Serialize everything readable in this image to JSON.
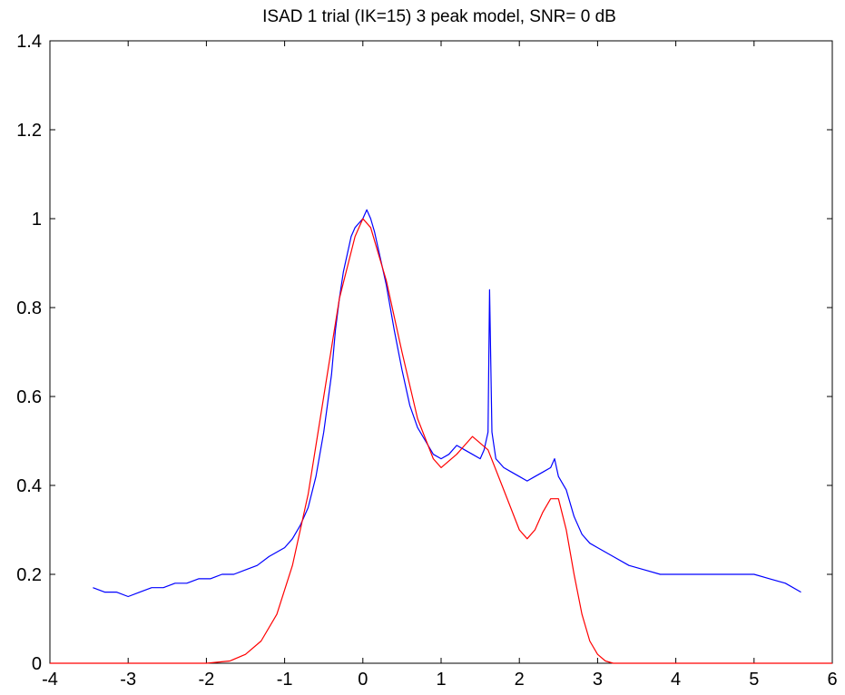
{
  "chart_data": {
    "type": "line",
    "title": "ISAD 1 trial (IK=15) 3 peak model, SNR= 0 dB",
    "xlabel": "",
    "ylabel": "",
    "xlim": [
      -4,
      6
    ],
    "ylim": [
      0,
      1.4
    ],
    "x_ticks": [
      -4,
      -3,
      -2,
      -1,
      0,
      1,
      2,
      3,
      4,
      5,
      6
    ],
    "x_tick_labels": [
      "-4",
      "-3",
      "-2",
      "-1",
      "0",
      "1",
      "2",
      "3",
      "4",
      "5",
      "6"
    ],
    "y_ticks": [
      0,
      0.2,
      0.4,
      0.6,
      0.8,
      1.0,
      1.2,
      1.4
    ],
    "y_tick_labels": [
      "0",
      "0.2",
      "0.4",
      "0.6",
      "0.8",
      "1",
      "1.2",
      "1.4"
    ],
    "grid": false,
    "legend": "none",
    "series": [
      {
        "color": "#0000ff",
        "x": [
          -3.45,
          -3.3,
          -3.15,
          -3.0,
          -2.85,
          -2.7,
          -2.55,
          -2.4,
          -2.25,
          -2.1,
          -1.95,
          -1.8,
          -1.65,
          -1.5,
          -1.35,
          -1.2,
          -1.1,
          -1.0,
          -0.9,
          -0.8,
          -0.7,
          -0.6,
          -0.5,
          -0.4,
          -0.35,
          -0.3,
          -0.25,
          -0.2,
          -0.15,
          -0.1,
          -0.05,
          0.0,
          0.05,
          0.1,
          0.15,
          0.2,
          0.3,
          0.4,
          0.5,
          0.6,
          0.7,
          0.8,
          0.9,
          1.0,
          1.1,
          1.2,
          1.3,
          1.4,
          1.5,
          1.55,
          1.6,
          1.62,
          1.65,
          1.7,
          1.8,
          1.9,
          2.0,
          2.1,
          2.2,
          2.3,
          2.4,
          2.45,
          2.5,
          2.6,
          2.7,
          2.8,
          2.9,
          3.0,
          3.1,
          3.2,
          3.4,
          3.6,
          3.8,
          4.0,
          4.2,
          4.4,
          4.6,
          4.8,
          5.0,
          5.2,
          5.4,
          5.6
        ],
        "values": [
          0.17,
          0.16,
          0.16,
          0.15,
          0.16,
          0.17,
          0.17,
          0.18,
          0.18,
          0.19,
          0.19,
          0.2,
          0.2,
          0.21,
          0.22,
          0.24,
          0.25,
          0.26,
          0.28,
          0.31,
          0.35,
          0.42,
          0.52,
          0.65,
          0.75,
          0.82,
          0.88,
          0.92,
          0.96,
          0.98,
          0.99,
          1.0,
          1.02,
          1.0,
          0.97,
          0.93,
          0.85,
          0.75,
          0.66,
          0.58,
          0.53,
          0.5,
          0.47,
          0.46,
          0.47,
          0.49,
          0.48,
          0.47,
          0.46,
          0.48,
          0.52,
          0.84,
          0.52,
          0.46,
          0.44,
          0.43,
          0.42,
          0.41,
          0.42,
          0.43,
          0.44,
          0.46,
          0.42,
          0.39,
          0.33,
          0.29,
          0.27,
          0.26,
          0.25,
          0.24,
          0.22,
          0.21,
          0.2,
          0.2,
          0.2,
          0.2,
          0.2,
          0.2,
          0.2,
          0.19,
          0.18,
          0.16
        ]
      },
      {
        "color": "#ff0000",
        "x": [
          -4.0,
          -3.0,
          -2.0,
          -1.7,
          -1.5,
          -1.3,
          -1.1,
          -0.9,
          -0.7,
          -0.5,
          -0.3,
          -0.1,
          0.0,
          0.1,
          0.3,
          0.5,
          0.7,
          0.9,
          1.0,
          1.2,
          1.4,
          1.6,
          1.8,
          2.0,
          2.1,
          2.2,
          2.3,
          2.4,
          2.5,
          2.6,
          2.7,
          2.8,
          2.9,
          3.0,
          3.1,
          3.2,
          4.0,
          5.0,
          6.0
        ],
        "values": [
          0.0,
          0.0,
          0.0,
          0.005,
          0.02,
          0.05,
          0.11,
          0.22,
          0.38,
          0.6,
          0.82,
          0.96,
          1.0,
          0.98,
          0.86,
          0.7,
          0.55,
          0.46,
          0.44,
          0.47,
          0.51,
          0.48,
          0.39,
          0.3,
          0.28,
          0.3,
          0.34,
          0.37,
          0.37,
          0.3,
          0.2,
          0.11,
          0.05,
          0.02,
          0.005,
          0.0,
          0.0,
          0.0,
          0.0
        ]
      }
    ]
  }
}
